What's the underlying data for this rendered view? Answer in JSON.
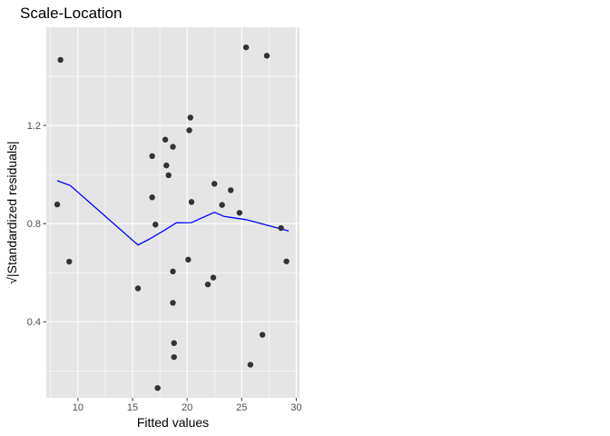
{
  "chart_data": {
    "type": "scatter",
    "title": "Scale-Location",
    "xlabel": "Fitted values",
    "ylabel": "√|Standardized residuals|",
    "xlim": [
      7.1,
      30.3
    ],
    "ylim": [
      0.09,
      1.6
    ],
    "x_ticks": [
      10,
      15,
      20,
      25,
      30
    ],
    "x_tick_labels": [
      "10",
      "15",
      "20",
      "25",
      "30"
    ],
    "y_ticks": [
      0.4,
      0.8,
      1.2
    ],
    "y_tick_labels": [
      "0.4",
      "0.8",
      "1.2"
    ],
    "grid": true,
    "legend": "none",
    "colors": {
      "panel": "#e5e5e5",
      "grid": "#ffffff",
      "point": "#333333",
      "smooth": "#0000ff"
    },
    "points": [
      {
        "x": 8.4,
        "y": 1.467
      },
      {
        "x": 8.1,
        "y": 0.878
      },
      {
        "x": 9.2,
        "y": 0.645
      },
      {
        "x": 15.5,
        "y": 0.536
      },
      {
        "x": 16.8,
        "y": 1.075
      },
      {
        "x": 16.8,
        "y": 0.907
      },
      {
        "x": 17.1,
        "y": 0.796
      },
      {
        "x": 17.3,
        "y": 0.13
      },
      {
        "x": 18.0,
        "y": 1.142
      },
      {
        "x": 18.1,
        "y": 1.037
      },
      {
        "x": 18.3,
        "y": 0.997
      },
      {
        "x": 18.7,
        "y": 1.113
      },
      {
        "x": 18.7,
        "y": 0.605
      },
      {
        "x": 18.7,
        "y": 0.477
      },
      {
        "x": 18.8,
        "y": 0.313
      },
      {
        "x": 18.8,
        "y": 0.256
      },
      {
        "x": 20.1,
        "y": 0.653
      },
      {
        "x": 20.2,
        "y": 1.18
      },
      {
        "x": 20.3,
        "y": 1.232
      },
      {
        "x": 20.4,
        "y": 0.888
      },
      {
        "x": 21.9,
        "y": 0.552
      },
      {
        "x": 22.4,
        "y": 0.58
      },
      {
        "x": 22.5,
        "y": 0.962
      },
      {
        "x": 23.2,
        "y": 0.876
      },
      {
        "x": 24.0,
        "y": 0.936
      },
      {
        "x": 24.8,
        "y": 0.844
      },
      {
        "x": 25.4,
        "y": 1.518
      },
      {
        "x": 25.8,
        "y": 0.225
      },
      {
        "x": 26.9,
        "y": 0.347
      },
      {
        "x": 27.3,
        "y": 1.484
      },
      {
        "x": 28.6,
        "y": 0.782
      },
      {
        "x": 29.1,
        "y": 0.646
      }
    ],
    "smooth_line": [
      {
        "x": 8.1,
        "y": 0.975
      },
      {
        "x": 9.3,
        "y": 0.955
      },
      {
        "x": 15.5,
        "y": 0.713
      },
      {
        "x": 16.5,
        "y": 0.736
      },
      {
        "x": 17.9,
        "y": 0.772
      },
      {
        "x": 19.0,
        "y": 0.803
      },
      {
        "x": 20.4,
        "y": 0.804
      },
      {
        "x": 22.5,
        "y": 0.846
      },
      {
        "x": 23.4,
        "y": 0.829
      },
      {
        "x": 25.4,
        "y": 0.816
      },
      {
        "x": 29.3,
        "y": 0.77
      }
    ]
  }
}
